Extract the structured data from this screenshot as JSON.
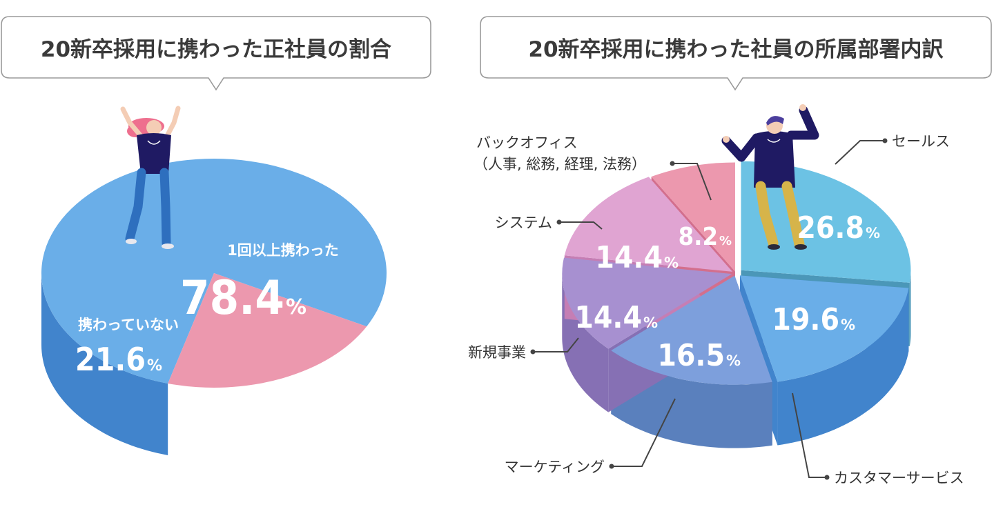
{
  "chart_data": [
    {
      "type": "pie",
      "title": "20新卒採用に携わった正社員の割合",
      "slices": [
        {
          "label": "1回以上携わった",
          "value": 78.4,
          "display": "78.4",
          "unit": "%",
          "color": "#6aaee8",
          "side_color": "#4184cc"
        },
        {
          "label": "携わっていない",
          "value": 21.6,
          "display": "21.6",
          "unit": "%",
          "color": "#ec98ae",
          "side_color": "#dd6585"
        }
      ]
    },
    {
      "type": "pie",
      "title": "20新卒採用に携わった社員の所属部署内訳",
      "slices": [
        {
          "label": "セールス",
          "value": 26.8,
          "display": "26.8",
          "unit": "%",
          "color": "#6cc2e4",
          "side_color": "#4b97b8"
        },
        {
          "label": "カスタマーサービス",
          "value": 19.6,
          "display": "19.6",
          "unit": "%",
          "color": "#6aaee8",
          "side_color": "#4184cc"
        },
        {
          "label": "マーケティング",
          "value": 16.5,
          "display": "16.5",
          "unit": "%",
          "color": "#7d9fdc",
          "side_color": "#5a80bd"
        },
        {
          "label": "新規事業",
          "value": 14.4,
          "display": "14.4",
          "unit": "%",
          "color": "#a790d0",
          "side_color": "#8670b4"
        },
        {
          "label": "システム",
          "value": 14.4,
          "display": "14.4",
          "unit": "%",
          "color": "#e0a4d2",
          "side_color": "#c57eb4"
        },
        {
          "label_lines": [
            "バックオフィス",
            "（人事, 総務, 経理, 法務）"
          ],
          "value": 8.2,
          "display": "8.2",
          "unit": "%",
          "color": "#ec98ae",
          "side_color": "#d36f8d"
        }
      ]
    }
  ],
  "colors": {
    "bubble_border": "#9a9a9a",
    "leader": "#444444",
    "figure_navy": "#1f1a63",
    "figure_hair_pink": "#ee6f8e",
    "figure_hair_purple": "#4b3e9d",
    "figure_pants_blue": "#2e6fbe",
    "figure_pants_mustard": "#d6b44a",
    "skin": "#f4cdb5"
  }
}
